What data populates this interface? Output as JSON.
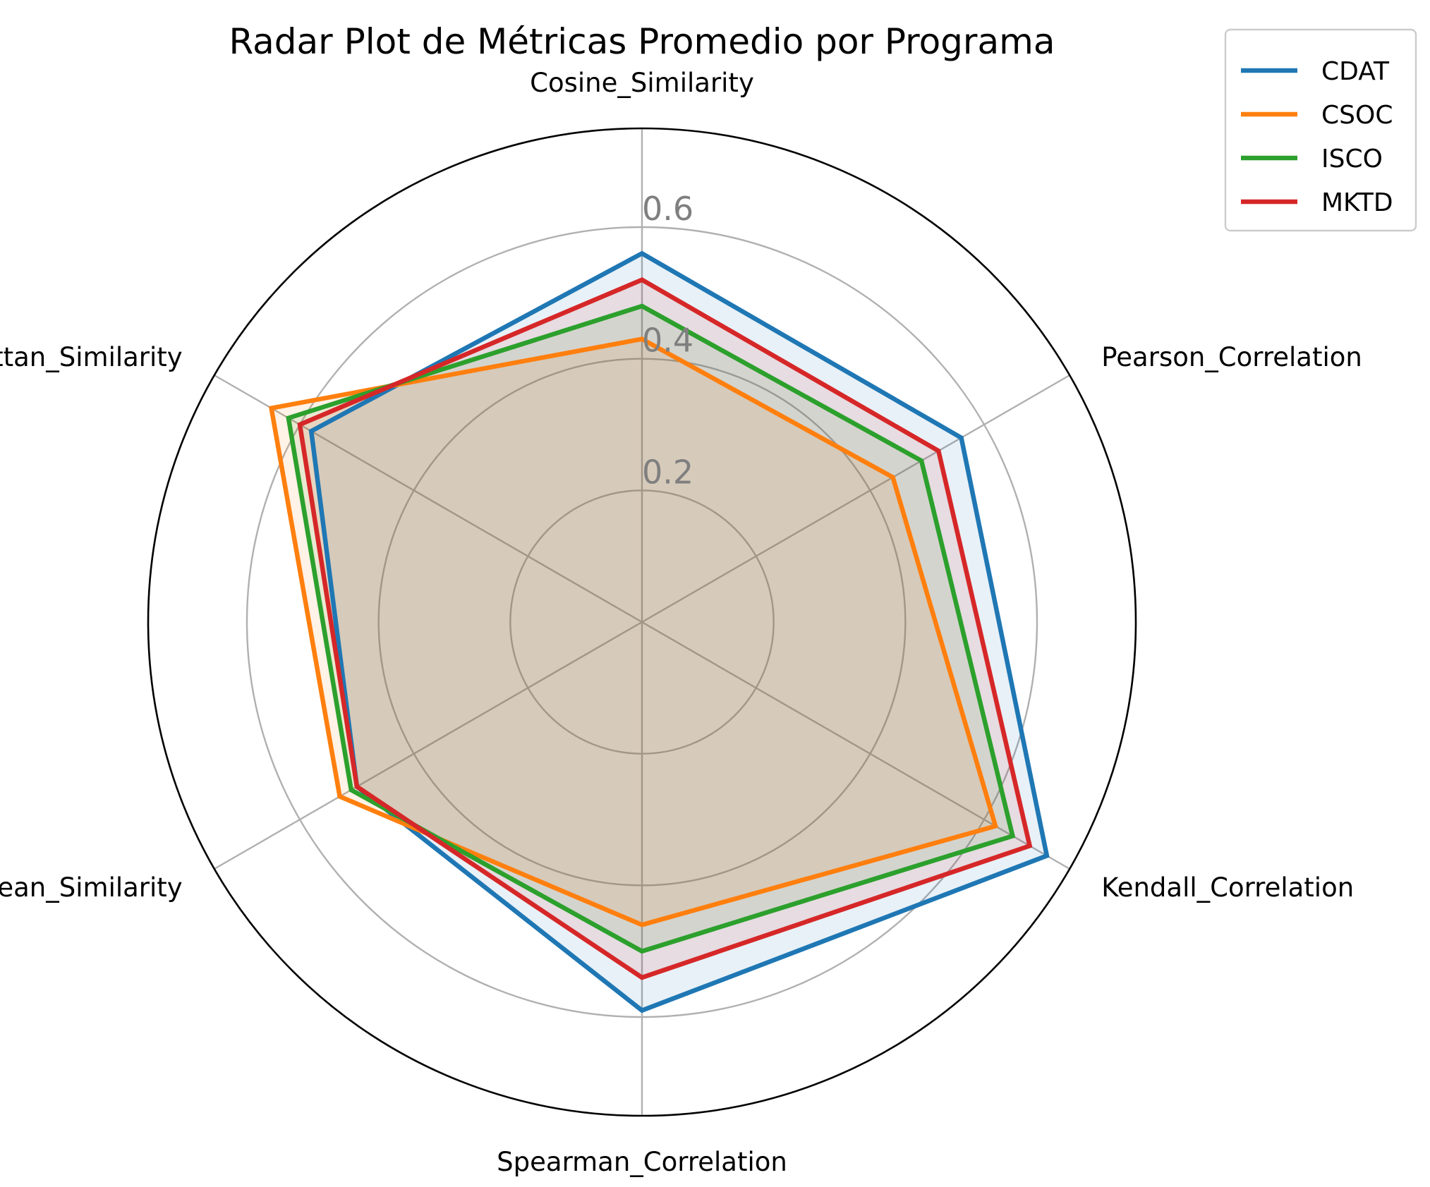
{
  "chart_data": {
    "type": "radar",
    "title": "Radar Plot de Métricas Promedio por Programa",
    "axes": [
      "Cosine_Similarity",
      "Pearson_Correlation",
      "Kendall_Correlation",
      "Spearman_Correlation",
      "Euclidean_Similarity",
      "Manhattan_Similarity"
    ],
    "rticks": [
      0.2,
      0.4,
      0.6
    ],
    "rtick_labels": [
      "0.2",
      "0.4",
      "0.6"
    ],
    "rlim": [
      0,
      0.75
    ],
    "grid": true,
    "legend_position": "top-right",
    "series": [
      {
        "name": "CDAT",
        "color": "#1f77b4",
        "values": [
          0.56,
          0.56,
          0.71,
          0.59,
          0.5,
          0.58
        ]
      },
      {
        "name": "CSOC",
        "color": "#ff7f0e",
        "values": [
          0.43,
          0.44,
          0.62,
          0.46,
          0.53,
          0.65
        ]
      },
      {
        "name": "ISCO",
        "color": "#2ca02c",
        "values": [
          0.48,
          0.49,
          0.65,
          0.5,
          0.51,
          0.62
        ]
      },
      {
        "name": "MKTD",
        "color": "#d62728",
        "values": [
          0.52,
          0.52,
          0.68,
          0.54,
          0.5,
          0.6
        ]
      }
    ]
  }
}
